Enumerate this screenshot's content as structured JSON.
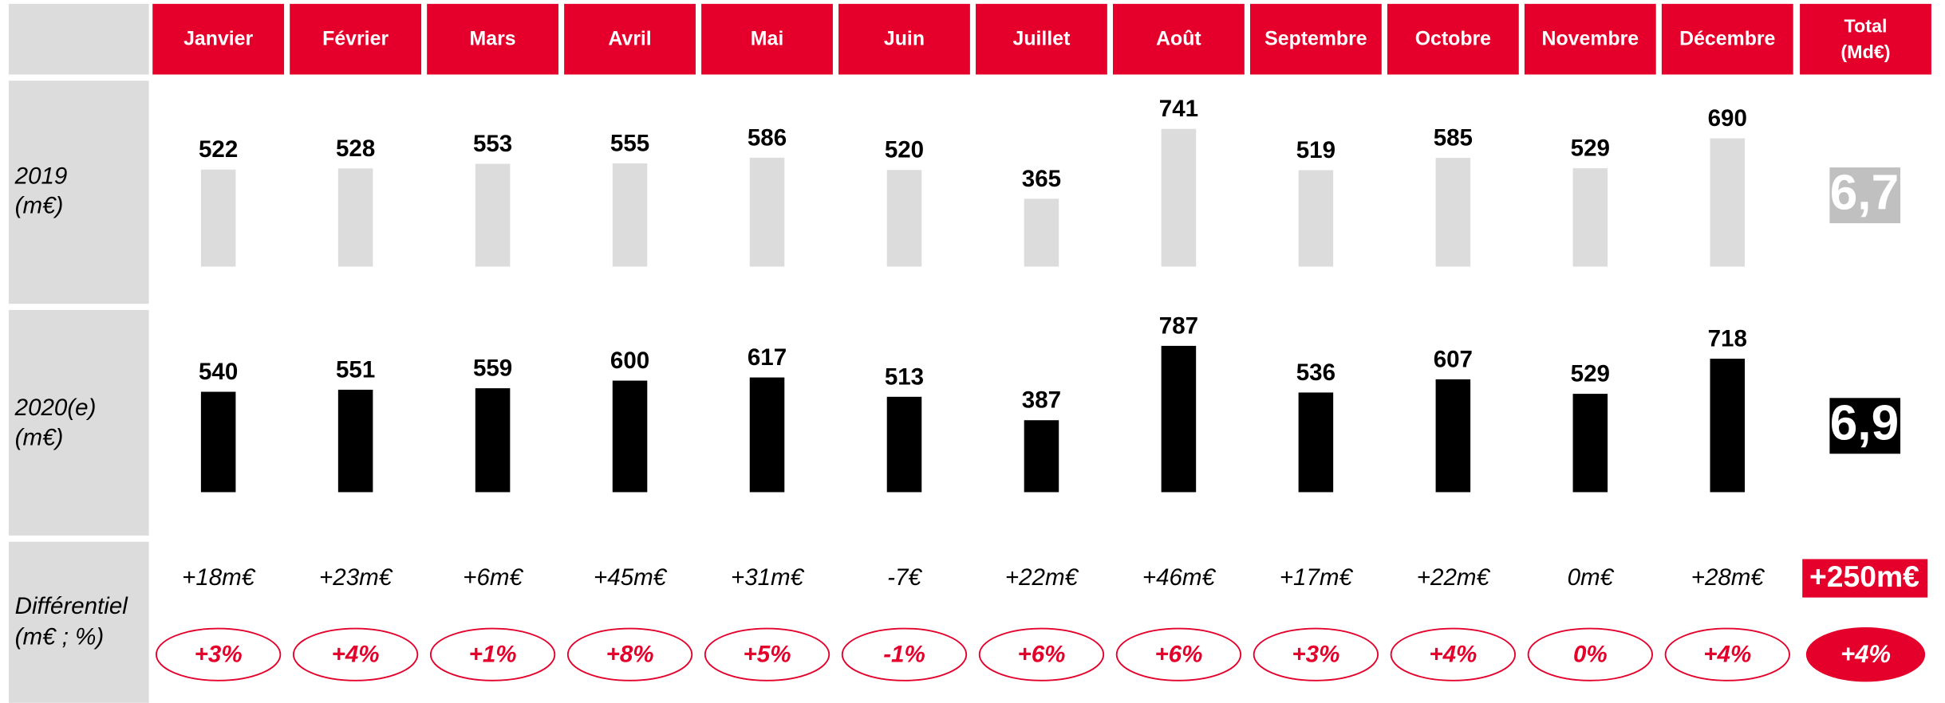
{
  "total_header": [
    "Total",
    "(Md€)"
  ],
  "chart_data": [
    {
      "type": "bar",
      "label": [
        "2019",
        "(m€)"
      ],
      "categories": [
        "Janvier",
        "Février",
        "Mars",
        "Avril",
        "Mai",
        "Juin",
        "Juillet",
        "Août",
        "Septembre",
        "Octobre",
        "Novembre",
        "Décembre"
      ],
      "values": [
        522,
        528,
        553,
        555,
        586,
        520,
        365,
        741,
        519,
        585,
        529,
        690
      ],
      "color": "#dcdcdc",
      "ylim": [
        0,
        1000
      ],
      "total": "6,7",
      "total_color": "#c0c0c0"
    },
    {
      "type": "bar",
      "label": [
        "2020(e)",
        "(m€)"
      ],
      "categories": [
        "Janvier",
        "Février",
        "Mars",
        "Avril",
        "Mai",
        "Juin",
        "Juillet",
        "Août",
        "Septembre",
        "Octobre",
        "Novembre",
        "Décembre"
      ],
      "values": [
        540,
        551,
        559,
        600,
        617,
        513,
        387,
        787,
        536,
        607,
        529,
        718
      ],
      "color": "#000000",
      "ylim": [
        0,
        1000
      ],
      "total": "6,9",
      "total_color": "#000000"
    }
  ],
  "differential": {
    "label": [
      "Différentiel",
      "(m€ ; %)"
    ],
    "amounts": [
      "+18m€",
      "+23m€",
      "+6m€",
      "+45m€",
      "+31m€",
      "-7€",
      "+22m€",
      "+46m€",
      "+17m€",
      "+22m€",
      "0m€",
      "+28m€"
    ],
    "percents": [
      "+3%",
      "+4%",
      "+1%",
      "+8%",
      "+5%",
      "-1%",
      "+6%",
      "+6%",
      "+3%",
      "+4%",
      "0%",
      "+4%"
    ],
    "total_amount": "+250m€",
    "total_percent": "+4%"
  }
}
